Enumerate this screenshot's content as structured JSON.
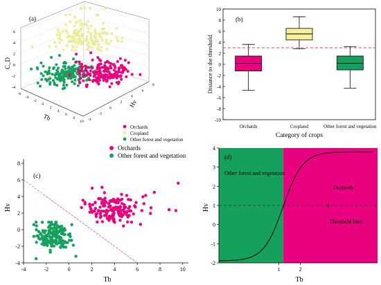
{
  "panel_a": {
    "label": "(a)",
    "zlabel": "C_D",
    "xlabel": "Tb",
    "ylabel": "Hv",
    "z_ticks": [
      "6",
      "4",
      "2",
      "0",
      "-2",
      "-4"
    ],
    "x_ticks": [
      "-6",
      "-4",
      "-2",
      "0",
      "2",
      "4",
      "6",
      "8",
      "10"
    ],
    "y_ticks": [
      "-4",
      "-2",
      "0",
      "2",
      "4",
      "6",
      "8"
    ],
    "legend": [
      {
        "label": "Orchards",
        "color": "#E8007F"
      },
      {
        "label": "Cropland",
        "color": "#F3F099"
      },
      {
        "label": "Other forest and vegetation",
        "color": "#16A05D"
      }
    ]
  },
  "colors": {
    "orchards": "#E8007F",
    "cropland": "#F3F099",
    "forest": "#16A05D",
    "threshold": "#D94C3D"
  },
  "chart_data": [
    {
      "type": "scatter",
      "panel": "(a)",
      "projection": "3d",
      "xlabel": "Tb",
      "ylabel": "Hv",
      "zlabel": "C_D",
      "series": [
        {
          "name": "Orchards",
          "description": "cluster at positive Tb, z near 0"
        },
        {
          "name": "Cropland",
          "description": "cluster above z=2 spread upward"
        },
        {
          "name": "Other forest and vegetation",
          "description": "cluster at negative Tb, z near 0"
        }
      ]
    },
    {
      "type": "box",
      "panel": "(b)",
      "title": "(b)",
      "xlabel": "Category of crops",
      "ylabel": "Distance to the threshold",
      "ylim": [
        -10,
        10
      ],
      "yticks": [
        -10,
        -8,
        -6,
        -4,
        -2,
        0,
        2,
        4,
        6,
        8,
        10
      ],
      "threshold": 3,
      "categories": [
        "Orchards",
        "Cropland",
        "Other forest and vegetation"
      ],
      "boxes": [
        {
          "name": "Orchards",
          "min": -4.7,
          "q1": -1.2,
          "median": 0.2,
          "q3": 1.5,
          "max": 3.6
        },
        {
          "name": "Cropland",
          "min": 2.8,
          "q1": 4.4,
          "median": 5.5,
          "q3": 6.5,
          "max": 8.6
        },
        {
          "name": "Other forest and vegetation",
          "min": -4.3,
          "q1": -1.0,
          "median": 0.2,
          "q3": 1.5,
          "max": 3.2
        }
      ]
    },
    {
      "type": "scatter",
      "panel": "(c)",
      "title": "(c)",
      "xlabel": "Tb",
      "ylabel": "Hv",
      "xlim": [
        -4,
        10.5
      ],
      "ylim": [
        -4,
        8.5
      ],
      "xticks": [
        -4,
        -2,
        0,
        2,
        4,
        6,
        8,
        10
      ],
      "yticks": [
        -4,
        -2,
        0,
        2,
        4,
        6,
        8
      ],
      "boundary_lines": [
        {
          "x": [
            -4,
            6
          ],
          "y": [
            6,
            -4
          ]
        },
        {
          "x": [
            -2,
            6
          ],
          "y": [
            4,
            -4
          ]
        }
      ],
      "legend": [
        {
          "label": "Orchards",
          "color": "#E8007F"
        },
        {
          "label": "Other forest and vegetation",
          "color": "#16A05D"
        }
      ],
      "series": [
        {
          "name": "Orchards",
          "center": [
            3.8,
            2.5
          ],
          "spread": [
            1.6,
            1.2
          ],
          "extra": [
            [
              9.6,
              5.6
            ],
            [
              9.4,
              2.3
            ],
            [
              8.8,
              2.4
            ],
            [
              7.5,
              4.5
            ],
            [
              1.4,
              3.3
            ],
            [
              2.9,
              5.1
            ],
            [
              5.5,
              0.9
            ]
          ]
        },
        {
          "name": "Other forest and vegetation",
          "center": [
            -1.3,
            -0.7
          ],
          "spread": [
            1.0,
            1.0
          ],
          "extra": [
            [
              -2.9,
              -3.5
            ],
            [
              -3.1,
              0.6
            ],
            [
              0.6,
              -3.2
            ]
          ]
        }
      ]
    },
    {
      "type": "area",
      "panel": "(d)",
      "title": "(d)",
      "xlabel": "Tb",
      "ylabel": "Hv",
      "xlim": [
        -1.8,
        5.6
      ],
      "ylim": [
        -2,
        4
      ],
      "xticks": [
        1,
        2
      ],
      "yticks": [
        -2,
        -1,
        0,
        1,
        2,
        3,
        4
      ],
      "threshold": 1.2,
      "threshold_line_y": 1,
      "regions": [
        {
          "name": "Other forest and vegetation",
          "from": -1.8,
          "to": 1.2,
          "color": "#16A05D"
        },
        {
          "name": "Orchards",
          "from": 1.2,
          "to": 5.6,
          "color": "#E8007F"
        }
      ],
      "curve": {
        "type": "sigmoid",
        "low": -1.9,
        "high": 3.8,
        "center": 1.2,
        "steepness": 2.2
      },
      "annotations": [
        "Other forest and vegetation",
        "Orchards",
        "Threshold limit"
      ]
    }
  ]
}
